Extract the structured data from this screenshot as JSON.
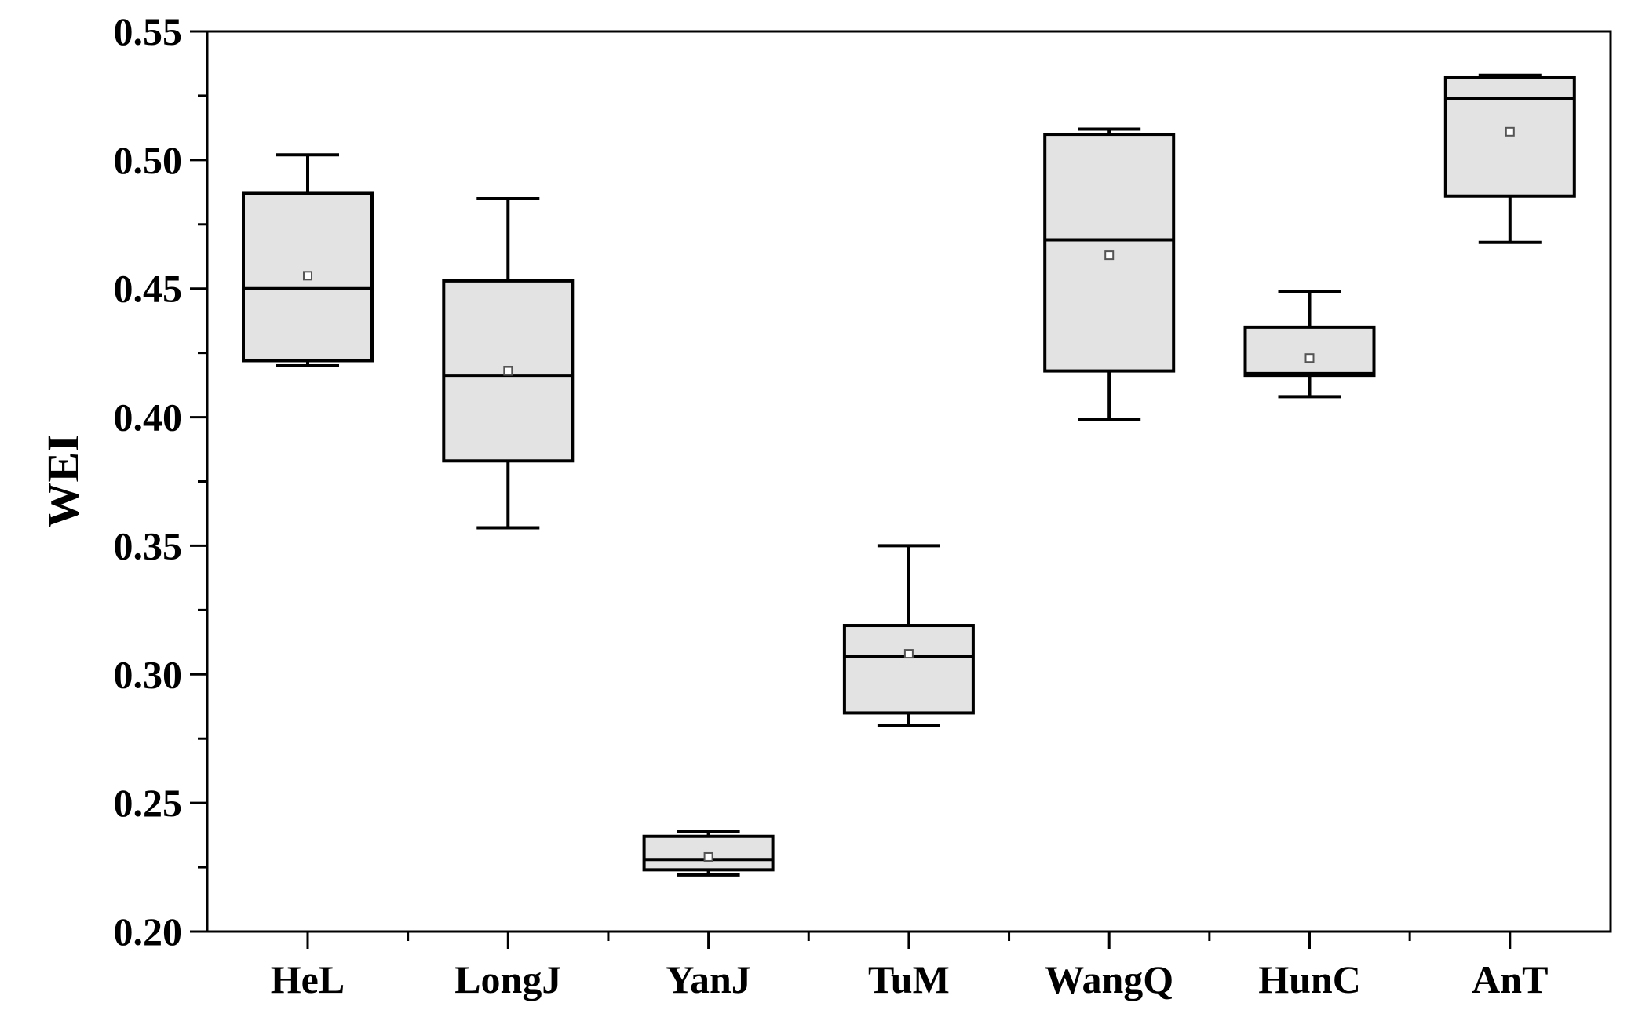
{
  "chart_data": {
    "type": "box",
    "title": "",
    "xlabel": "",
    "ylabel": "WEI",
    "ylim": [
      0.2,
      0.55
    ],
    "y_ticks": [
      "0.20",
      "0.25",
      "0.30",
      "0.35",
      "0.40",
      "0.45",
      "0.50",
      "0.55"
    ],
    "y_tick_values": [
      0.2,
      0.25,
      0.3,
      0.35,
      0.4,
      0.45,
      0.5,
      0.55
    ],
    "y_minor_step": 0.025,
    "grid": false,
    "box_fill": "#e3e3e3",
    "categories": [
      "HeL",
      "LongJ",
      "YanJ",
      "TuM",
      "WangQ",
      "HunC",
      "AnT"
    ],
    "boxes": [
      {
        "category": "HeL",
        "whisker_low": 0.42,
        "q1": 0.422,
        "median": 0.45,
        "q3": 0.487,
        "whisker_high": 0.502,
        "mean": 0.455
      },
      {
        "category": "LongJ",
        "whisker_low": 0.357,
        "q1": 0.383,
        "median": 0.416,
        "q3": 0.453,
        "whisker_high": 0.485,
        "mean": 0.418
      },
      {
        "category": "YanJ",
        "whisker_low": 0.222,
        "q1": 0.224,
        "median": 0.228,
        "q3": 0.237,
        "whisker_high": 0.239,
        "mean": 0.229
      },
      {
        "category": "TuM",
        "whisker_low": 0.28,
        "q1": 0.285,
        "median": 0.307,
        "q3": 0.319,
        "whisker_high": 0.35,
        "mean": 0.308
      },
      {
        "category": "WangQ",
        "whisker_low": 0.399,
        "q1": 0.418,
        "median": 0.469,
        "q3": 0.51,
        "whisker_high": 0.512,
        "mean": 0.463
      },
      {
        "category": "HunC",
        "whisker_low": 0.408,
        "q1": 0.416,
        "median": 0.417,
        "q3": 0.435,
        "whisker_high": 0.449,
        "mean": 0.423
      },
      {
        "category": "AnT",
        "whisker_low": 0.468,
        "q1": 0.486,
        "median": 0.524,
        "q3": 0.532,
        "whisker_high": 0.533,
        "mean": 0.511
      }
    ]
  }
}
